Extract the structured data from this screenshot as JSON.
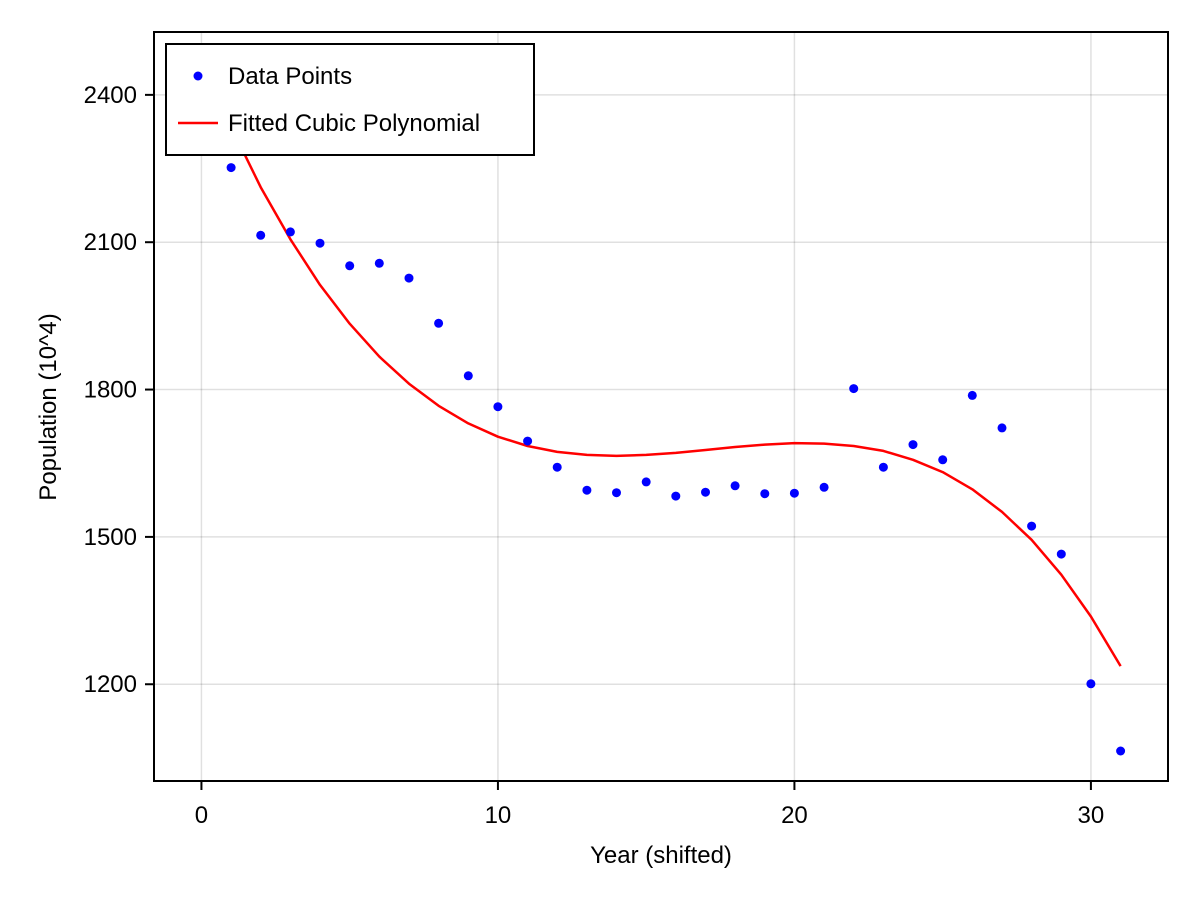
{
  "chart_data": {
    "type": "scatter",
    "title": "",
    "xlabel": "Year (shifted)",
    "ylabel": "Population (10^4)",
    "xlim": [
      -1.6,
      32.6
    ],
    "ylim": [
      1003,
      2528
    ],
    "xticks": [
      0,
      10,
      20,
      30
    ],
    "yticks": [
      1200,
      1500,
      1800,
      2100,
      2400
    ],
    "grid": true,
    "legend_position": "top-left",
    "colors": {
      "points": "#0000ff",
      "fit": "#ff0000"
    },
    "series": [
      {
        "name": "Data Points",
        "type": "scatter",
        "x": [
          1,
          2,
          3,
          4,
          5,
          6,
          7,
          8,
          9,
          10,
          11,
          12,
          13,
          14,
          15,
          16,
          17,
          18,
          19,
          20,
          21,
          22,
          23,
          24,
          25,
          26,
          27,
          28,
          29,
          30,
          31
        ],
        "y": [
          2252,
          2114,
          2121,
          2098,
          2052,
          2057,
          2027,
          1935,
          1828,
          1765,
          1695,
          1642,
          1595,
          1590,
          1612,
          1583,
          1591,
          1604,
          1588,
          1589,
          1601,
          1802,
          1642,
          1688,
          1657,
          1788,
          1722,
          1522,
          1465,
          1201,
          1064
        ]
      },
      {
        "name": "Fitted Cubic Polynomial",
        "type": "line",
        "x": [
          1,
          2,
          3,
          4,
          5,
          6,
          7,
          8,
          9,
          10,
          11,
          12,
          13,
          14,
          15,
          16,
          17,
          18,
          19,
          20,
          21,
          22,
          23,
          24,
          25,
          26,
          27,
          28,
          29,
          30,
          31
        ],
        "y": [
          2335,
          2212,
          2106,
          2013,
          1934,
          1867,
          1812,
          1767,
          1731,
          1704,
          1685,
          1673,
          1667,
          1665,
          1667,
          1671,
          1677,
          1683,
          1688,
          1691,
          1690,
          1685,
          1675,
          1657,
          1632,
          1597,
          1551,
          1494,
          1423,
          1338,
          1237
        ]
      }
    ]
  }
}
